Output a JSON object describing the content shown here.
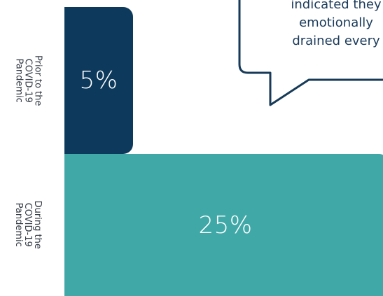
{
  "chart_data": {
    "type": "bar",
    "orientation": "horizontal",
    "categories": [
      "Prior to the\nCOVID-19\nPandemic",
      "During the\nCOVID-19\nPandemic"
    ],
    "values": [
      5,
      25
    ],
    "value_labels": [
      "5%",
      "25%"
    ],
    "colors": [
      "#0d3a5c",
      "#41a8a8"
    ],
    "callout": "indicated they\nemotionally\ndrained every"
  }
}
